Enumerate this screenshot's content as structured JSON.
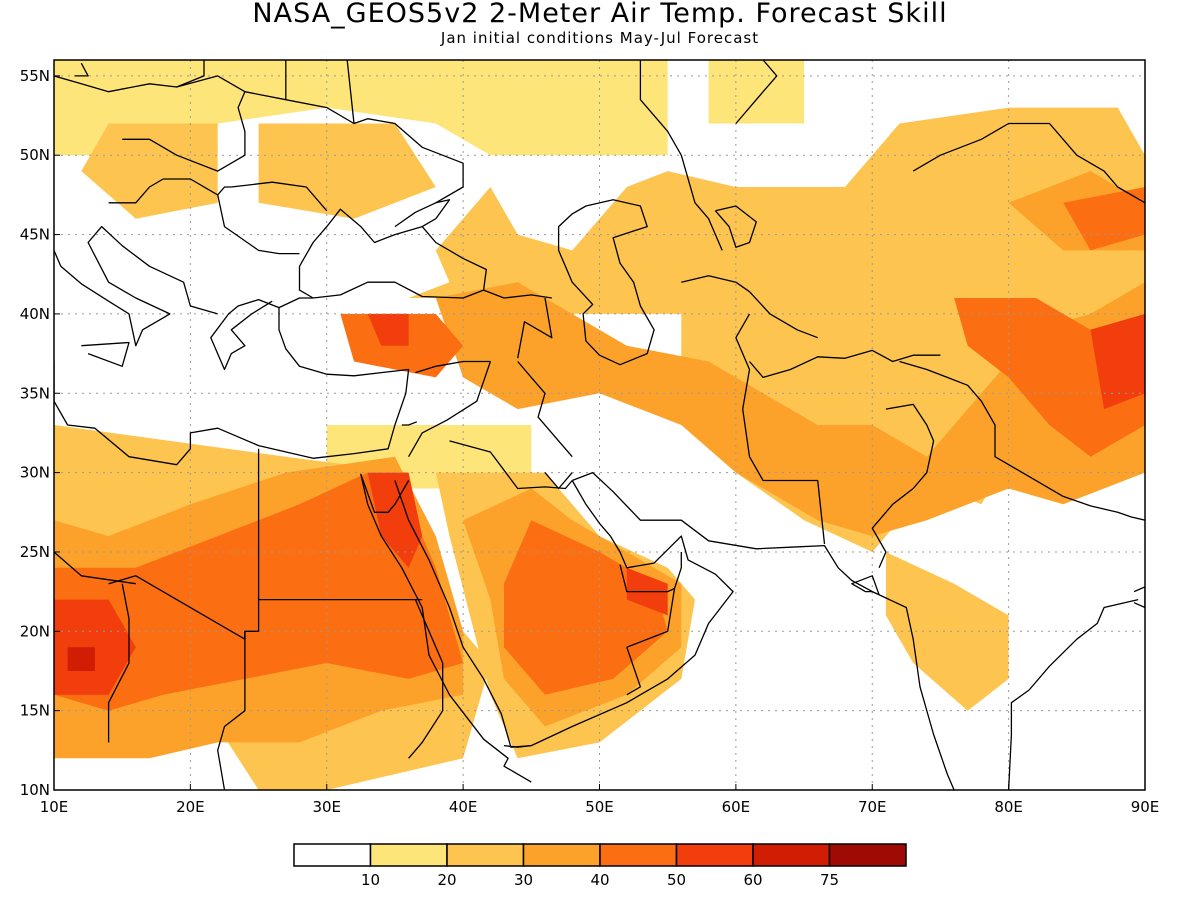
{
  "title": "NASA_GEOS5v2 2-Meter Air Temp. Forecast Skill",
  "subtitle": "Jan initial conditions  May-Jul Forecast",
  "colors": {
    "bin0": "#ffffff",
    "bin1": "#fee57a",
    "bin2": "#fdc44f",
    "bin3": "#fca22b",
    "bin4": "#fb6e12",
    "bin5": "#f23d0c",
    "bin6": "#d21d05",
    "bin7": "#a00a04",
    "coast": "#000000",
    "grid": "#999999"
  },
  "chart_data": {
    "type": "heatmap",
    "xlim": [
      10,
      90
    ],
    "ylim": [
      10,
      56
    ],
    "x_ticks": [
      10,
      20,
      30,
      40,
      50,
      60,
      70,
      80,
      90
    ],
    "x_tick_labels": [
      "10E",
      "20E",
      "30E",
      "40E",
      "50E",
      "60E",
      "70E",
      "80E",
      "90E"
    ],
    "y_ticks": [
      10,
      15,
      20,
      25,
      30,
      35,
      40,
      45,
      50,
      55
    ],
    "y_tick_labels": [
      "10N",
      "15N",
      "20N",
      "25N",
      "30N",
      "35N",
      "40N",
      "45N",
      "50N",
      "55N"
    ],
    "grid": true,
    "colorbar": {
      "boundaries": [
        10,
        20,
        30,
        40,
        50,
        60,
        75
      ],
      "labels": [
        "10",
        "20",
        "30",
        "40",
        "50",
        "60",
        "75"
      ],
      "colors": [
        "#ffffff",
        "#fee57a",
        "#fdc44f",
        "#fca22b",
        "#fb6e12",
        "#f23d0c",
        "#d21d05",
        "#a00a04"
      ]
    },
    "regions": [
      {
        "level": 1,
        "pts": [
          [
            10,
            56
          ],
          [
            55,
            56
          ],
          [
            55,
            50
          ],
          [
            42,
            50
          ],
          [
            38,
            52
          ],
          [
            30,
            53
          ],
          [
            22,
            52
          ],
          [
            15,
            50
          ],
          [
            10,
            50
          ]
        ]
      },
      {
        "level": 1,
        "pts": [
          [
            58,
            56
          ],
          [
            65,
            56
          ],
          [
            65,
            52
          ],
          [
            58,
            52
          ]
        ]
      },
      {
        "level": 1,
        "pts": [
          [
            30,
            33
          ],
          [
            45,
            33
          ],
          [
            45,
            29
          ],
          [
            30,
            29
          ]
        ]
      },
      {
        "level": 2,
        "pts": [
          [
            25,
            52
          ],
          [
            35,
            52
          ],
          [
            38,
            48
          ],
          [
            32,
            46
          ],
          [
            25,
            47
          ]
        ]
      },
      {
        "level": 2,
        "pts": [
          [
            14,
            52
          ],
          [
            22,
            52
          ],
          [
            22,
            47
          ],
          [
            16,
            46
          ],
          [
            12,
            49
          ]
        ]
      },
      {
        "level": 2,
        "pts": [
          [
            10,
            33
          ],
          [
            27,
            31
          ],
          [
            36,
            30
          ],
          [
            37,
            22
          ],
          [
            40,
            20
          ],
          [
            42,
            18
          ],
          [
            40,
            12
          ],
          [
            30,
            10
          ],
          [
            25,
            10
          ],
          [
            22,
            14
          ],
          [
            10,
            14
          ]
        ]
      },
      {
        "level": 2,
        "pts": [
          [
            36,
            41
          ],
          [
            44,
            41
          ],
          [
            45,
            40
          ],
          [
            56,
            40
          ],
          [
            56,
            35
          ],
          [
            60,
            30
          ],
          [
            65,
            27
          ],
          [
            70,
            25
          ],
          [
            72,
            27
          ],
          [
            75,
            29
          ],
          [
            78,
            28
          ],
          [
            80,
            31
          ],
          [
            86,
            32
          ],
          [
            90,
            31
          ],
          [
            90,
            50
          ],
          [
            88,
            53
          ],
          [
            80,
            53
          ],
          [
            72,
            52
          ],
          [
            68,
            48
          ],
          [
            60,
            48
          ],
          [
            55,
            49
          ],
          [
            52,
            48
          ],
          [
            48,
            44
          ],
          [
            44,
            45
          ],
          [
            42,
            48
          ],
          [
            38,
            44
          ],
          [
            39,
            42
          ]
        ]
      },
      {
        "level": 2,
        "pts": [
          [
            38,
            30
          ],
          [
            46,
            30
          ],
          [
            50,
            26
          ],
          [
            55,
            24
          ],
          [
            57,
            22
          ],
          [
            56,
            17
          ],
          [
            50,
            13
          ],
          [
            44,
            12
          ],
          [
            42,
            16
          ],
          [
            39,
            26
          ]
        ]
      },
      {
        "level": 2,
        "pts": [
          [
            71,
            25
          ],
          [
            76,
            23
          ],
          [
            80,
            21
          ],
          [
            80,
            17
          ],
          [
            77,
            15
          ],
          [
            73,
            18
          ],
          [
            71,
            21
          ]
        ]
      },
      {
        "level": 3,
        "pts": [
          [
            10,
            27
          ],
          [
            14,
            26
          ],
          [
            20,
            28
          ],
          [
            27,
            30
          ],
          [
            35,
            31
          ],
          [
            38,
            26
          ],
          [
            40,
            20
          ],
          [
            40,
            16
          ],
          [
            34,
            15
          ],
          [
            28,
            13
          ],
          [
            22,
            13
          ],
          [
            17,
            12
          ],
          [
            10,
            12
          ]
        ]
      },
      {
        "level": 3,
        "pts": [
          [
            45,
            29
          ],
          [
            48,
            27
          ],
          [
            52,
            25
          ],
          [
            56,
            23
          ],
          [
            56,
            19
          ],
          [
            52,
            16
          ],
          [
            46,
            14
          ],
          [
            43,
            17
          ],
          [
            42,
            22
          ],
          [
            40,
            27
          ]
        ]
      },
      {
        "level": 3,
        "pts": [
          [
            38,
            41
          ],
          [
            44,
            42
          ],
          [
            48,
            40
          ],
          [
            52,
            38
          ],
          [
            58,
            37
          ],
          [
            62,
            35
          ],
          [
            66,
            33
          ],
          [
            70,
            33
          ],
          [
            74,
            31
          ],
          [
            78,
            35
          ],
          [
            82,
            39
          ],
          [
            86,
            40
          ],
          [
            90,
            42
          ],
          [
            90,
            30
          ],
          [
            84,
            28
          ],
          [
            80,
            29
          ],
          [
            74,
            27
          ],
          [
            70,
            26
          ],
          [
            66,
            27
          ],
          [
            60,
            30
          ],
          [
            56,
            33
          ],
          [
            50,
            35
          ],
          [
            44,
            34
          ],
          [
            40,
            36
          ]
        ]
      },
      {
        "level": 3,
        "pts": [
          [
            80,
            47
          ],
          [
            86,
            49
          ],
          [
            90,
            47
          ],
          [
            90,
            44
          ],
          [
            84,
            44
          ]
        ]
      },
      {
        "level": 4,
        "pts": [
          [
            10,
            24
          ],
          [
            16,
            24
          ],
          [
            22,
            26
          ],
          [
            28,
            28
          ],
          [
            33,
            30
          ],
          [
            36,
            28
          ],
          [
            38,
            24
          ],
          [
            40,
            18
          ],
          [
            36,
            17
          ],
          [
            30,
            18
          ],
          [
            24,
            17
          ],
          [
            18,
            16
          ],
          [
            14,
            15
          ],
          [
            10,
            16
          ]
        ]
      },
      {
        "level": 4,
        "pts": [
          [
            45,
            27
          ],
          [
            50,
            25
          ],
          [
            54,
            23
          ],
          [
            55,
            20
          ],
          [
            51,
            17
          ],
          [
            46,
            16
          ],
          [
            43,
            19
          ],
          [
            43,
            23
          ]
        ]
      },
      {
        "level": 4,
        "pts": [
          [
            76,
            41
          ],
          [
            82,
            41
          ],
          [
            86,
            39
          ],
          [
            90,
            40
          ],
          [
            90,
            33
          ],
          [
            86,
            31
          ],
          [
            83,
            33
          ],
          [
            80,
            36
          ],
          [
            77,
            38
          ]
        ]
      },
      {
        "level": 4,
        "pts": [
          [
            31,
            40
          ],
          [
            38,
            40
          ],
          [
            40,
            38
          ],
          [
            38,
            36
          ],
          [
            32,
            37
          ]
        ]
      },
      {
        "level": 4,
        "pts": [
          [
            84,
            47
          ],
          [
            90,
            48
          ],
          [
            90,
            45
          ],
          [
            86,
            44
          ]
        ]
      },
      {
        "level": 5,
        "pts": [
          [
            10,
            22
          ],
          [
            14,
            22
          ],
          [
            16,
            19
          ],
          [
            14,
            16
          ],
          [
            10,
            16
          ]
        ]
      },
      {
        "level": 5,
        "pts": [
          [
            33,
            30
          ],
          [
            36,
            30
          ],
          [
            37,
            26
          ],
          [
            36,
            24
          ],
          [
            34,
            26
          ]
        ]
      },
      {
        "level": 5,
        "pts": [
          [
            52,
            24
          ],
          [
            55,
            23
          ],
          [
            55,
            21
          ],
          [
            52,
            22
          ]
        ]
      },
      {
        "level": 5,
        "pts": [
          [
            86,
            39
          ],
          [
            90,
            40
          ],
          [
            90,
            35
          ],
          [
            87,
            34
          ]
        ]
      },
      {
        "level": 5,
        "pts": [
          [
            33,
            40
          ],
          [
            36,
            40
          ],
          [
            36,
            38
          ],
          [
            34,
            38
          ]
        ]
      },
      {
        "level": 6,
        "pts": [
          [
            11,
            19
          ],
          [
            13,
            19
          ],
          [
            13,
            17.5
          ],
          [
            11,
            17.5
          ]
        ]
      }
    ]
  }
}
